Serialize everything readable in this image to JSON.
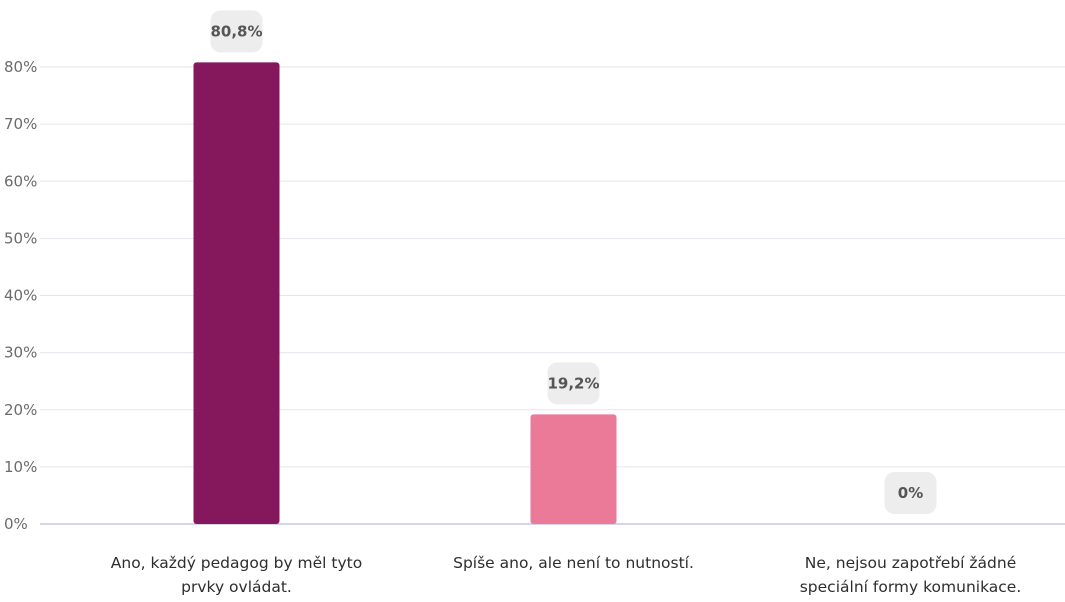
{
  "chart_data": {
    "type": "bar",
    "categories": [
      [
        "Ano, každý pedagog by měl tyto",
        "prvky ovládat."
      ],
      [
        "Spíše ano, ale není to nutností."
      ],
      [
        "Ne, nejsou zapotřebí žádné",
        "speciální formy komunikace."
      ]
    ],
    "values": [
      80.8,
      19.2,
      0
    ],
    "data_labels": [
      "80,8%",
      "19,2%",
      "0%"
    ],
    "y_ticks": [
      0,
      10,
      20,
      30,
      40,
      50,
      60,
      70,
      80
    ],
    "y_tick_labels": [
      "0%",
      "10%",
      "20%",
      "30%",
      "40%",
      "50%",
      "60%",
      "70%",
      "80%"
    ],
    "ylim": [
      0,
      80
    ],
    "grid": true,
    "legend": "none",
    "bar_colors": [
      "#85175d",
      "#ea7a98",
      "#cccccc"
    ],
    "colors": {
      "gridline": "#e4e6ee",
      "baseline": "#c9c6e6",
      "tick_text": "#6b6b6b",
      "category_text": "#2e2e2e",
      "label_bg": "#ededed",
      "label_text": "#555555"
    }
  }
}
